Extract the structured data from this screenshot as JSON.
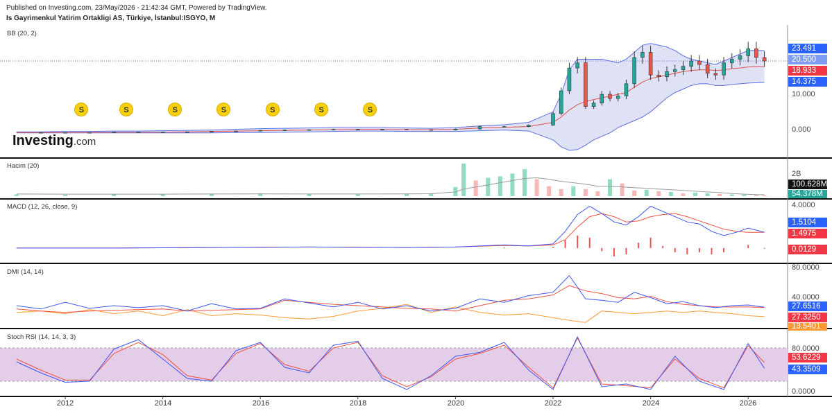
{
  "header": {
    "published": "Published on Investing.com, 23/May/2026 - 21:42:34 GMT, Powered by TradingView.",
    "instrument": "Is Gayrimenkul Yatirim Ortakligi AS, Türkiye, İstanbul:ISGYO, M"
  },
  "logo": {
    "brand": "Investing",
    "suffix": ".com"
  },
  "colors": {
    "up": "#26a69a",
    "down": "#ef5350",
    "bb_band": "#5b6fe0",
    "bb_fill": "#dfe1f4",
    "bb_basis": "#e05050",
    "volume_up": "#93dcc0",
    "volume_down": "#f7b7b7",
    "volume_ma": "#999999",
    "macd": "#3b55f0",
    "signal": "#f05040",
    "hist": "#ef5350",
    "di_plus": "#3b55f0",
    "adx": "#f05040",
    "di_minus": "#ff9933",
    "stoch_k": "#3b55f0",
    "stoch_d": "#f05040",
    "stoch_fill": "#e4cde8",
    "dividend": "#f7cf0b",
    "badge_blue": "#2962ff",
    "badge_red": "#f23645",
    "badge_green": "#26a69a",
    "badge_dark": "#111111"
  },
  "dividend_marker": "S",
  "chart_data": [
    {
      "type": "candlestick",
      "title": "BB (20, 2)",
      "interval": "monthly",
      "x": [
        "2011-01",
        "2011-07",
        "2012-01",
        "2012-07",
        "2013-01",
        "2013-07",
        "2014-01",
        "2014-07",
        "2015-01",
        "2015-07",
        "2016-01",
        "2016-07",
        "2017-01",
        "2017-07",
        "2018-01",
        "2018-07",
        "2019-01",
        "2019-07",
        "2020-01",
        "2020-07",
        "2021-01",
        "2021-07",
        "2022-01",
        "2022-03",
        "2022-05",
        "2022-07",
        "2022-09",
        "2022-11",
        "2023-01",
        "2023-03",
        "2023-05",
        "2023-07",
        "2023-09",
        "2023-11",
        "2024-01",
        "2024-03",
        "2024-05",
        "2024-07",
        "2024-09",
        "2024-11",
        "2025-01",
        "2025-03",
        "2025-05",
        "2025-07",
        "2025-09",
        "2025-11",
        "2026-01",
        "2026-03",
        "2026-05"
      ],
      "close": [
        0.1,
        0.1,
        0.1,
        0.1,
        0.2,
        0.2,
        0.2,
        0.3,
        0.4,
        0.5,
        0.7,
        0.8,
        0.9,
        1.0,
        1.0,
        1.0,
        0.9,
        0.8,
        1.1,
        1.8,
        1.8,
        2.2,
        5.5,
        12.0,
        18.5,
        20.0,
        7.5,
        8.5,
        11.0,
        9.8,
        10.5,
        14.0,
        21.5,
        23.0,
        16.5,
        16.0,
        17.5,
        18.0,
        19.0,
        20.5,
        19.5,
        17.0,
        16.5,
        20.0,
        21.0,
        22.0,
        24.0,
        21.5,
        20.5
      ],
      "bb_upper": [
        0.3,
        0.3,
        0.4,
        0.4,
        0.5,
        0.5,
        0.6,
        0.7,
        0.8,
        1.0,
        1.2,
        1.3,
        1.4,
        1.5,
        1.5,
        1.5,
        1.4,
        1.3,
        1.5,
        2.0,
        2.3,
        3.0,
        6.0,
        11.0,
        18.0,
        21.0,
        21.0,
        21.0,
        21.0,
        20.5,
        20.0,
        21.0,
        23.0,
        25.0,
        25.5,
        25.0,
        24.5,
        23.5,
        22.0,
        21.0,
        20.5,
        20.0,
        19.5,
        20.5,
        21.5,
        22.5,
        23.5,
        23.5,
        23.491
      ],
      "bb_basis": [
        0.1,
        0.1,
        0.1,
        0.1,
        0.2,
        0.2,
        0.2,
        0.3,
        0.4,
        0.5,
        0.6,
        0.7,
        0.8,
        0.9,
        1.0,
        1.0,
        0.9,
        0.9,
        1.0,
        1.4,
        1.6,
        1.8,
        3.0,
        4.5,
        6.5,
        8.0,
        9.0,
        9.5,
        10.0,
        10.5,
        11.0,
        11.5,
        13.0,
        14.5,
        15.5,
        16.0,
        16.5,
        17.0,
        17.5,
        17.8,
        18.0,
        18.0,
        17.8,
        18.0,
        18.3,
        18.5,
        18.8,
        18.9,
        18.933
      ],
      "bb_lower": [
        0.0,
        0.0,
        0.0,
        0.0,
        0.0,
        0.0,
        0.0,
        0.0,
        0.0,
        0.1,
        0.1,
        0.2,
        0.3,
        0.4,
        0.5,
        0.5,
        0.4,
        0.4,
        0.4,
        0.6,
        0.8,
        0.5,
        -2.0,
        -4.0,
        -5.0,
        -4.8,
        -3.5,
        -2.0,
        -1.0,
        0.0,
        1.5,
        2.5,
        3.5,
        4.5,
        6.0,
        8.0,
        10.0,
        11.5,
        12.5,
        13.5,
        14.0,
        14.0,
        13.5,
        13.5,
        13.8,
        14.0,
        14.2,
        14.3,
        14.375
      ],
      "price_line": 20.5,
      "ylim": [
        -6,
        30
      ],
      "y_ticks": [
        "10.000",
        "0.000"
      ],
      "last": {
        "bb_upper": "23.491",
        "close": "20.500",
        "bb_basis": "18.933",
        "bb_lower": "14.375"
      },
      "dividends": [
        "2012-05",
        "2013-04",
        "2014-04",
        "2015-04",
        "2016-04",
        "2017-04",
        "2018-04"
      ]
    },
    {
      "type": "bar",
      "title": "Hacim (20)",
      "x": [
        "2011-01",
        "2012-01",
        "2013-01",
        "2014-01",
        "2015-01",
        "2016-01",
        "2017-01",
        "2018-01",
        "2019-01",
        "2019-07",
        "2020-01",
        "2020-03",
        "2020-06",
        "2020-09",
        "2020-12",
        "2021-03",
        "2021-06",
        "2021-09",
        "2021-12",
        "2022-03",
        "2022-06",
        "2022-09",
        "2022-12",
        "2023-03",
        "2023-06",
        "2023-09",
        "2023-12",
        "2024-03",
        "2024-06",
        "2024-09",
        "2024-12",
        "2025-03",
        "2025-06",
        "2025-09",
        "2025-12",
        "2026-03",
        "2026-05"
      ],
      "values_millions": [
        120,
        100,
        150,
        130,
        180,
        200,
        160,
        140,
        180,
        200,
        650,
        2300,
        1100,
        1300,
        1400,
        1600,
        1900,
        1200,
        700,
        500,
        700,
        500,
        350,
        1200,
        900,
        400,
        450,
        350,
        300,
        200,
        250,
        200,
        150,
        120,
        110,
        80,
        54.378
      ],
      "ma_millions": [
        150,
        140,
        140,
        140,
        150,
        160,
        150,
        150,
        160,
        170,
        300,
        500,
        650,
        800,
        950,
        1100,
        1250,
        1300,
        1200,
        1050,
        950,
        850,
        700,
        700,
        650,
        600,
        550,
        500,
        450,
        400,
        350,
        300,
        250,
        180,
        140,
        110,
        100.628
      ],
      "y_ticks": [
        "2B"
      ],
      "ylim_millions": [
        0,
        2500
      ],
      "last": {
        "ma": "100.628M",
        "volume": "54.378M"
      }
    },
    {
      "type": "line",
      "title": "MACD (12, 26, close, 9)",
      "x": [
        "2011-01",
        "2013-01",
        "2015-01",
        "2017-01",
        "2019-01",
        "2020-01",
        "2021-01",
        "2021-07",
        "2022-01",
        "2022-04",
        "2022-07",
        "2022-10",
        "2023-01",
        "2023-04",
        "2023-07",
        "2023-10",
        "2024-01",
        "2024-04",
        "2024-07",
        "2024-10",
        "2025-01",
        "2025-04",
        "2025-07",
        "2025-10",
        "2026-01",
        "2026-05"
      ],
      "series": [
        {
          "name": "MACD",
          "values": [
            0,
            0,
            0.05,
            0.1,
            0.05,
            0.1,
            0.3,
            0.2,
            0.4,
            1.6,
            3.2,
            4.0,
            3.3,
            2.5,
            2.2,
            3.0,
            4.0,
            3.5,
            3.0,
            2.5,
            2.3,
            1.6,
            1.2,
            1.5,
            1.9,
            1.5104
          ]
        },
        {
          "name": "Signal",
          "values": [
            0,
            0,
            0.05,
            0.1,
            0.05,
            0.1,
            0.25,
            0.2,
            0.3,
            0.8,
            2.0,
            3.0,
            3.3,
            3.0,
            2.5,
            2.6,
            3.0,
            3.2,
            3.3,
            3.0,
            2.6,
            2.2,
            1.8,
            1.6,
            1.5,
            1.4975
          ]
        },
        {
          "name": "Histogram",
          "values": [
            0,
            0,
            0,
            0,
            0,
            0,
            0.05,
            0,
            0.1,
            0.8,
            1.2,
            1.0,
            -0.3,
            -0.8,
            -0.6,
            0.5,
            1.0,
            0.2,
            -0.4,
            -0.6,
            -0.4,
            -0.6,
            -0.4,
            0.0,
            0.3,
            0.0129
          ]
        }
      ],
      "ylim": [
        -1.2,
        4.5
      ],
      "y_ticks": [
        "4.0000"
      ],
      "last": {
        "macd": "1.5104",
        "signal": "1.4975",
        "hist": "0.0129"
      }
    },
    {
      "type": "line",
      "title": "DMI (14, 14)",
      "x": [
        "2011-01",
        "2011-07",
        "2012-01",
        "2012-07",
        "2013-01",
        "2013-07",
        "2014-01",
        "2014-07",
        "2015-01",
        "2015-07",
        "2016-01",
        "2016-07",
        "2017-01",
        "2017-07",
        "2018-01",
        "2018-07",
        "2019-01",
        "2019-07",
        "2020-01",
        "2020-07",
        "2021-01",
        "2021-07",
        "2022-01",
        "2022-05",
        "2022-09",
        "2023-01",
        "2023-05",
        "2023-09",
        "2024-01",
        "2024-05",
        "2024-09",
        "2025-01",
        "2025-05",
        "2025-09",
        "2026-01",
        "2026-05"
      ],
      "series": [
        {
          "name": "+DI",
          "values": [
            30,
            25,
            35,
            26,
            30,
            27,
            30,
            22,
            33,
            25,
            26,
            40,
            34,
            28,
            35,
            25,
            30,
            22,
            26,
            40,
            35,
            45,
            50,
            75,
            40,
            38,
            35,
            50,
            42,
            33,
            36,
            30,
            27,
            30,
            31,
            27.6516
          ]
        },
        {
          "name": "ADX",
          "values": [
            25,
            22,
            20,
            22,
            23,
            24,
            25,
            22,
            23,
            24,
            25,
            38,
            35,
            32,
            30,
            28,
            26,
            25,
            22,
            30,
            38,
            40,
            46,
            60,
            52,
            48,
            42,
            40,
            44,
            36,
            32,
            30,
            28,
            28,
            28,
            27.325
          ]
        },
        {
          "name": "-DI",
          "values": [
            20,
            22,
            18,
            24,
            18,
            22,
            15,
            24,
            15,
            18,
            16,
            12,
            10,
            14,
            22,
            26,
            32,
            20,
            28,
            20,
            16,
            18,
            12,
            8,
            5,
            22,
            20,
            18,
            20,
            22,
            20,
            22,
            20,
            18,
            15,
            13.5401
          ]
        }
      ],
      "ylim": [
        0,
        90
      ],
      "y_ticks": [
        "80.0000",
        "40.0000"
      ],
      "last": {
        "plus_di": "27.6516",
        "adx": "27.3250",
        "minus_di": "13.5401"
      }
    },
    {
      "type": "line",
      "title": "Stoch RSI (14, 14, 3, 3)",
      "x": [
        "2011-01",
        "2011-07",
        "2012-01",
        "2012-07",
        "2013-01",
        "2013-07",
        "2014-01",
        "2014-07",
        "2015-01",
        "2015-07",
        "2016-01",
        "2016-07",
        "2017-01",
        "2017-07",
        "2018-01",
        "2018-07",
        "2019-01",
        "2019-07",
        "2020-01",
        "2020-07",
        "2021-01",
        "2021-07",
        "2022-01",
        "2022-07",
        "2023-01",
        "2023-07",
        "2024-01",
        "2024-07",
        "2025-01",
        "2025-07",
        "2026-01",
        "2026-05"
      ],
      "series": [
        {
          "name": "K",
          "values": [
            55,
            35,
            18,
            20,
            78,
            95,
            60,
            25,
            20,
            75,
            90,
            45,
            35,
            85,
            92,
            25,
            5,
            30,
            65,
            72,
            90,
            40,
            5,
            100,
            10,
            15,
            5,
            65,
            20,
            5,
            88,
            43.3509
          ]
        },
        {
          "name": "D",
          "values": [
            60,
            40,
            22,
            22,
            70,
            90,
            68,
            30,
            22,
            70,
            88,
            50,
            38,
            80,
            90,
            30,
            10,
            28,
            60,
            70,
            85,
            45,
            8,
            98,
            15,
            12,
            8,
            60,
            25,
            8,
            84,
            53.6229
          ]
        }
      ],
      "bands": [
        20,
        80
      ],
      "ylim": [
        -5,
        110
      ],
      "y_ticks": [
        "80.0000",
        "0.0000"
      ],
      "last": {
        "k": "43.3509",
        "d": "53.6229"
      }
    }
  ],
  "x_axis": {
    "ticks": [
      "2012",
      "2014",
      "2016",
      "2018",
      "2020",
      "2022",
      "2024",
      "2026"
    ]
  }
}
